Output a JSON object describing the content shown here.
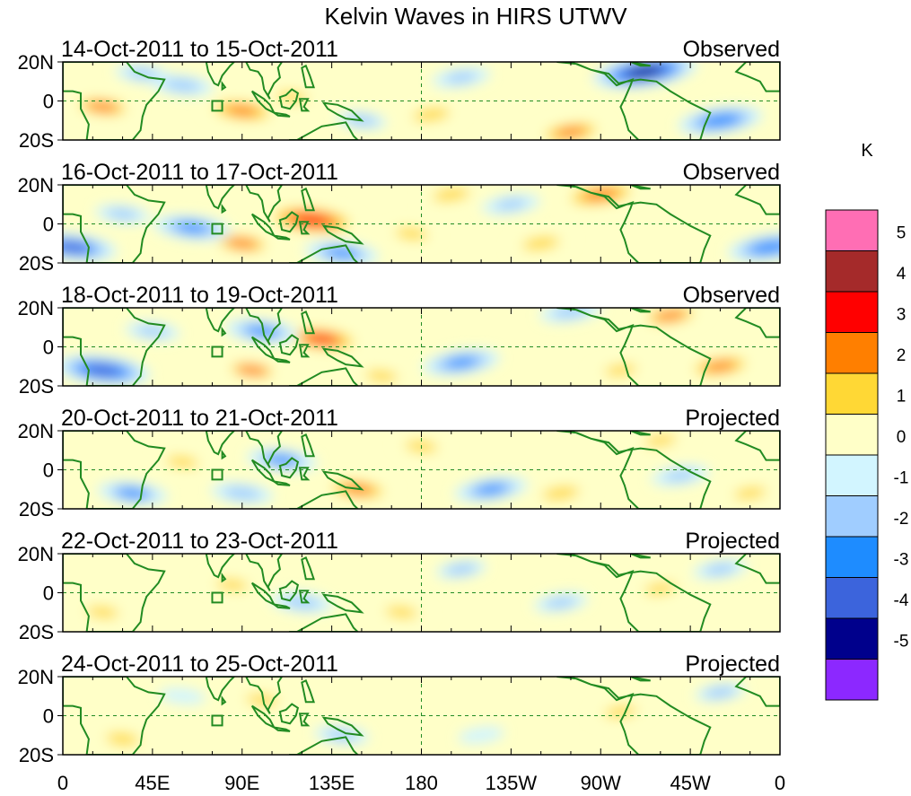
{
  "chart_data": {
    "type": "heatmap",
    "title": "Kelvin Waves in HIRS UTWV",
    "panels": [
      {
        "label": "14-Oct-2011 to 15-Oct-2011",
        "status": "Observed"
      },
      {
        "label": "16-Oct-2011 to 17-Oct-2011",
        "status": "Observed"
      },
      {
        "label": "18-Oct-2011 to 19-Oct-2011",
        "status": "Observed"
      },
      {
        "label": "20-Oct-2011 to 21-Oct-2011",
        "status": "Projected"
      },
      {
        "label": "22-Oct-2011 to 23-Oct-2011",
        "status": "Projected"
      },
      {
        "label": "24-Oct-2011 to 25-Oct-2011",
        "status": "Projected"
      }
    ],
    "y_ticks": [
      "20N",
      "0",
      "20S"
    ],
    "y_range": [
      -20,
      20
    ],
    "x_ticks": [
      "0",
      "45E",
      "90E",
      "135E",
      "180",
      "135W",
      "90W",
      "45W",
      "0"
    ],
    "x_range": [
      0,
      360
    ],
    "colorbar": {
      "unit": "K",
      "tick_labels": [
        "5",
        "4",
        "3",
        "2",
        "1",
        "0",
        "-1",
        "-2",
        "-3",
        "-4",
        "-5"
      ],
      "colors": [
        "#ff6eb4",
        "#a52a2a",
        "#ff0000",
        "#ff7f00",
        "#ffd835",
        "#ffffc8",
        "#d2f5ff",
        "#a0cdff",
        "#1e8cff",
        "#3c64dc",
        "#00008c",
        "#8c28ff"
      ]
    },
    "box_region": {
      "lon": [
        75,
        80
      ],
      "lat": [
        -5,
        0
      ]
    },
    "anomaly_features": [
      [
        {
          "lon": 90,
          "lat": -5,
          "value": 2.6
        },
        {
          "lon": 60,
          "lat": 8,
          "value": -1.8
        },
        {
          "lon": 20,
          "lat": -3,
          "value": 2.2
        },
        {
          "lon": 115,
          "lat": 2,
          "value": 1.6
        },
        {
          "lon": 185,
          "lat": -7,
          "value": 1.8
        },
        {
          "lon": 280,
          "lat": 15,
          "value": 2.8
        },
        {
          "lon": 292,
          "lat": 15,
          "value": -4.2
        },
        {
          "lon": 255,
          "lat": -16,
          "value": 2.4
        },
        {
          "lon": 330,
          "lat": -10,
          "value": -3.0
        },
        {
          "lon": 200,
          "lat": 12,
          "value": -1.6
        },
        {
          "lon": 150,
          "lat": -10,
          "value": -1.2
        },
        {
          "lon": 40,
          "lat": 14,
          "value": -1.4
        }
      ],
      [
        {
          "lon": 125,
          "lat": 2,
          "value": 3.6
        },
        {
          "lon": 90,
          "lat": -10,
          "value": 2.2
        },
        {
          "lon": 5,
          "lat": -12,
          "value": -3.2
        },
        {
          "lon": 65,
          "lat": -2,
          "value": -2.6
        },
        {
          "lon": 140,
          "lat": -15,
          "value": -2.4
        },
        {
          "lon": 270,
          "lat": 15,
          "value": 2.8
        },
        {
          "lon": 355,
          "lat": -12,
          "value": -3.0
        },
        {
          "lon": 195,
          "lat": 15,
          "value": 1.8
        },
        {
          "lon": 225,
          "lat": 10,
          "value": -1.6
        },
        {
          "lon": 240,
          "lat": -10,
          "value": 1.8
        },
        {
          "lon": 30,
          "lat": 5,
          "value": -1.4
        },
        {
          "lon": 175,
          "lat": -5,
          "value": 1.2
        }
      ],
      [
        {
          "lon": 130,
          "lat": 4,
          "value": 3.0
        },
        {
          "lon": 20,
          "lat": -12,
          "value": -3.6
        },
        {
          "lon": 100,
          "lat": 8,
          "value": -2.4
        },
        {
          "lon": 95,
          "lat": -12,
          "value": 2.0
        },
        {
          "lon": 200,
          "lat": -8,
          "value": -2.6
        },
        {
          "lon": 255,
          "lat": 18,
          "value": -1.8
        },
        {
          "lon": 305,
          "lat": 16,
          "value": 2.2
        },
        {
          "lon": 330,
          "lat": -10,
          "value": 2.4
        },
        {
          "lon": 280,
          "lat": -12,
          "value": 1.6
        },
        {
          "lon": 45,
          "lat": 8,
          "value": -1.4
        },
        {
          "lon": 160,
          "lat": -15,
          "value": 1.4
        }
      ],
      [
        {
          "lon": 148,
          "lat": -10,
          "value": 2.4
        },
        {
          "lon": 110,
          "lat": 5,
          "value": -2.2
        },
        {
          "lon": 35,
          "lat": -12,
          "value": -2.2
        },
        {
          "lon": 90,
          "lat": -12,
          "value": -1.8
        },
        {
          "lon": 60,
          "lat": 4,
          "value": 1.4
        },
        {
          "lon": 215,
          "lat": -10,
          "value": -2.4
        },
        {
          "lon": 250,
          "lat": -12,
          "value": 1.8
        },
        {
          "lon": 310,
          "lat": -3,
          "value": -1.6
        },
        {
          "lon": 300,
          "lat": 15,
          "value": 1.6
        },
        {
          "lon": 180,
          "lat": 12,
          "value": 1.2
        },
        {
          "lon": 345,
          "lat": -12,
          "value": 1.4
        }
      ],
      [
        {
          "lon": 85,
          "lat": 4,
          "value": 1.6
        },
        {
          "lon": 20,
          "lat": -10,
          "value": 1.4
        },
        {
          "lon": 120,
          "lat": -5,
          "value": -1.8
        },
        {
          "lon": 170,
          "lat": -10,
          "value": 1.4
        },
        {
          "lon": 250,
          "lat": -5,
          "value": -1.4
        },
        {
          "lon": 300,
          "lat": 2,
          "value": 1.6
        },
        {
          "lon": 330,
          "lat": 12,
          "value": -1.4
        },
        {
          "lon": 200,
          "lat": 12,
          "value": -1.2
        }
      ],
      [
        {
          "lon": 100,
          "lat": 8,
          "value": 1.4
        },
        {
          "lon": 140,
          "lat": -10,
          "value": -1.4
        },
        {
          "lon": 280,
          "lat": 2,
          "value": 1.6
        },
        {
          "lon": 30,
          "lat": -12,
          "value": 1.0
        },
        {
          "lon": 330,
          "lat": 12,
          "value": -1.2
        },
        {
          "lon": 210,
          "lat": -10,
          "value": -1.0
        },
        {
          "lon": 60,
          "lat": 10,
          "value": -1.0
        }
      ]
    ]
  }
}
